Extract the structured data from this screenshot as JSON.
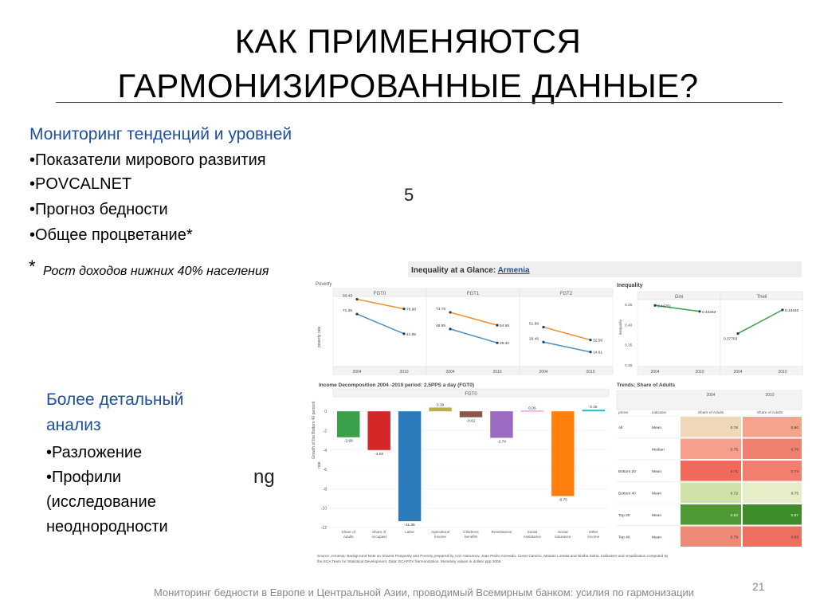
{
  "title": {
    "line1": "КАК ПРИМЕНЯЮТСЯ",
    "line2": "ГАРМОНИЗИРОВАННЫЕ ДАННЫЕ?"
  },
  "section1": {
    "heading": "Мониторинг тенденций и уровней",
    "items": [
      "•Показатели мирового развития",
      "•POVCALNET",
      "•Прогноз бедности",
      "•Общее процветание*"
    ],
    "note_star": "*",
    "note": "Рост доходов нижних 40% населения",
    "stray_char": "5"
  },
  "section2": {
    "heading1": "Более детальный",
    "heading2": "анализ",
    "items": [
      "•Разложение",
      "•Профили",
      "(исследование",
      "неоднородности"
    ],
    "stray_text": "ng"
  },
  "panel": {
    "header_prefix": "Inequality at a Glance: ",
    "header_country": "Armenia",
    "poverty_label": "Poverty",
    "inequality_label": "Inequality",
    "poverty_ylabel": "poverty rate",
    "decomp_title": "Income Decomposition 2004 -2010 period: 2.5PPS a day (FGT0)",
    "decomp_ylabel": "Growth of the Bottom 40 percent",
    "decomp_ylabel2": "rate",
    "trends_title": "Trends: Share of Adults",
    "source_line1": "Source: Armenia: Background Note on Shared Prosperity and Poverty prepared by Aziz Atamanov, Joao Pedro Azevedo, Cesar Cancho,  Mariam Lomaia and Nistha Sinha. Indicators and visualization computed by",
    "source_line2": "the ECA Team for Statistical Development. Data: ECAPOV harmonization. Monetary values in dollars ppp 2005."
  },
  "chart_data": [
    {
      "type": "line",
      "title": "FGT0",
      "x": [
        "2004",
        "2010"
      ],
      "series": [
        {
          "values": [
            93.43,
            78.98
          ],
          "color": "#f28e2b"
        },
        {
          "values": [
            71.35,
            41.85
          ],
          "color": "#4e8fc7"
        }
      ]
    },
    {
      "type": "line",
      "title": "FGT1",
      "x": [
        "2004",
        "2010"
      ],
      "series": [
        {
          "values": [
            73.78,
            54.65
          ],
          "color": "#f28e2b"
        },
        {
          "values": [
            48.95,
            28.32
          ],
          "color": "#4e8fc7"
        }
      ]
    },
    {
      "type": "line",
      "title": "FGT2",
      "x": [
        "2004",
        "2010"
      ],
      "series": [
        {
          "values": [
            51.86,
            32.59
          ],
          "color": "#f28e2b"
        },
        {
          "values": [
            29.46,
            14.61
          ],
          "color": "#4e8fc7"
        }
      ]
    },
    {
      "type": "line",
      "title": "Gini",
      "x": [
        "2004",
        "2010"
      ],
      "ylim": [
        0.3,
        0.45
      ],
      "yticks": [
        "0.45",
        "0.40",
        "0.35",
        "0.30"
      ],
      "ylabel": "inequality",
      "series": [
        {
          "values": [
            0.44751,
            0.43263
          ],
          "color": "#3aa04a"
        }
      ]
    },
    {
      "type": "line",
      "title": "Theil",
      "x": [
        "2004",
        "2010"
      ],
      "ylim": [
        0.3,
        0.45
      ],
      "series": [
        {
          "values": [
            0.37783,
            0.4364
          ],
          "color": "#3aa04a"
        }
      ]
    },
    {
      "type": "bar",
      "title": "FGT0",
      "categories": [
        "Share of Adults",
        "Share of occupied",
        "Labor",
        "Agricultural income",
        "Childrens benefits",
        "Remittances",
        "Social Assistance",
        "Social Insurance",
        "Other income"
      ],
      "values": [
        -2.68,
        -4.0,
        -11.35,
        0.39,
        -0.61,
        -2.74,
        0.06,
        -8.75,
        0.16
      ],
      "colors": [
        "#3aa04a",
        "#d62728",
        "#2b7bba",
        "#b8b14a",
        "#8c564b",
        "#9b6bc2",
        "#e377c2",
        "#ff7f0e",
        "#17becf"
      ],
      "ylim": [
        -12,
        1
      ],
      "yticks": [
        "0",
        "-2",
        "-4",
        "-6",
        "-8",
        "-10",
        "-12"
      ]
    },
    {
      "type": "table",
      "title": "Trends: Share of Adults",
      "columns": [
        "prime",
        "indicator",
        "Share of Adults 2004",
        "Share of Adults 2010"
      ],
      "year_headers": [
        "2004",
        "2010"
      ],
      "subheaders": [
        "prime",
        "indicator",
        "Share of Adults",
        "Share of Adults"
      ],
      "rows": [
        {
          "prime": "All",
          "indicator": "Mean",
          "v2004": "0.76",
          "v2010": "0.80",
          "c2004": "#eed8b8",
          "c2010": "#f4a48a"
        },
        {
          "prime": "",
          "indicator": "Median",
          "v2004": "0.75",
          "v2010": "0.76",
          "c2004": "#f6a08c",
          "c2010": "#f08070"
        },
        {
          "prime": "Bottom 20",
          "indicator": "Mean",
          "v2004": "0.71",
          "v2010": "0.74",
          "c2004": "#ef6a5a",
          "c2010": "#f27e6e"
        },
        {
          "prime": "Bottom 40",
          "indicator": "Mean",
          "v2004": "0.72",
          "v2010": "0.75",
          "c2004": "#cfe3a8",
          "c2010": "#e6eec8"
        },
        {
          "prime": "Top 20",
          "indicator": "Mean",
          "v2004": "0.83",
          "v2010": "0.87",
          "c2004": "#4f9a34",
          "c2010": "#3f8c2a"
        },
        {
          "prime": "Top 40",
          "indicator": "Mean",
          "v2004": "0.79",
          "v2010": "0.83",
          "c2004": "#f08a78",
          "c2010": "#ee6f60"
        }
      ]
    }
  ],
  "footer": {
    "text": "Мониторинг бедности в Европе и Центральной Азии, проводимый Всемирным банком: усилия по гармонизации",
    "page": "21"
  }
}
